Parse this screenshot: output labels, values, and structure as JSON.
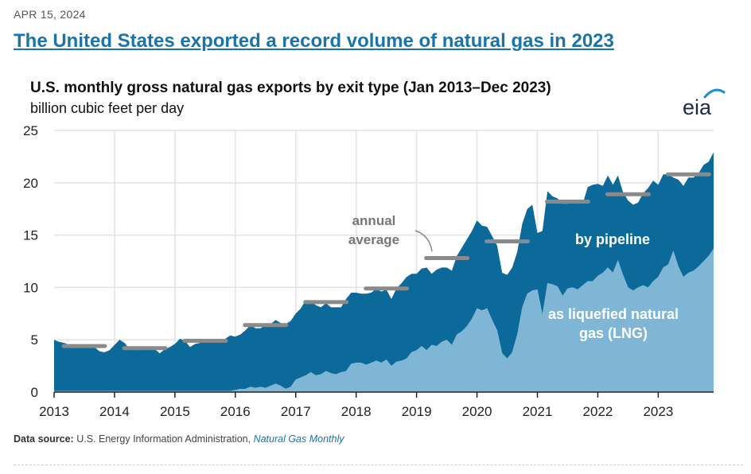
{
  "article": {
    "date": "APR 15, 2024",
    "headline": "The United States exported a record volume of natural gas in 2023"
  },
  "logo": {
    "text": "eia"
  },
  "source": {
    "label": "Data source:",
    "text": "U.S. Energy Information Administration,",
    "link_text": "Natural Gas Monthly"
  },
  "colors": {
    "pipeline": "#0b6a9a",
    "lng": "#7fb6d6",
    "average": "#8a8a8a",
    "grid": "#e3e3e3",
    "axis": "#222222"
  },
  "chart_data": {
    "type": "area",
    "title": "U.S. monthly gross natural gas exports by exit type (Jan 2013–Dec 2023)",
    "ylabel": "billion cubic feet per day",
    "xlabel": "",
    "ylim": [
      0,
      25
    ],
    "y_ticks": [
      0,
      5,
      10,
      15,
      20,
      25
    ],
    "x_ticks": [
      "2013",
      "2014",
      "2015",
      "2016",
      "2017",
      "2018",
      "2019",
      "2020",
      "2021",
      "2022",
      "2023"
    ],
    "start": "2013-01",
    "stacking": "LNG at bottom, pipeline stacked on top; total = top edge",
    "series": [
      {
        "name": "as liquefied natural gas (LNG)",
        "values": [
          0.1,
          0.1,
          0.1,
          0.1,
          0.1,
          0.1,
          0.1,
          0.1,
          0.1,
          0.1,
          0.1,
          0.1,
          0.1,
          0.1,
          0.1,
          0.1,
          0.1,
          0.1,
          0.1,
          0.1,
          0.1,
          0.1,
          0.1,
          0.1,
          0.1,
          0.1,
          0.1,
          0.1,
          0.1,
          0.1,
          0.1,
          0.1,
          0.1,
          0.1,
          0.1,
          0.1,
          0.2,
          0.3,
          0.3,
          0.5,
          0.4,
          0.5,
          0.4,
          0.6,
          0.8,
          0.6,
          0.3,
          0.5,
          1.2,
          1.4,
          1.6,
          1.9,
          1.6,
          1.7,
          2.0,
          1.8,
          1.7,
          1.9,
          2.0,
          2.7,
          2.8,
          2.8,
          2.6,
          2.8,
          3.0,
          2.8,
          3.1,
          2.5,
          2.9,
          3.0,
          3.2,
          3.8,
          4.0,
          4.4,
          4.0,
          4.5,
          4.4,
          4.8,
          5.0,
          4.5,
          5.5,
          5.8,
          6.3,
          7.0,
          8.0,
          7.8,
          8.0,
          6.9,
          5.9,
          3.7,
          3.2,
          3.8,
          5.5,
          8.1,
          9.4,
          9.7,
          9.8,
          7.4,
          10.4,
          10.3,
          10.1,
          9.2,
          9.9,
          10.0,
          9.8,
          10.2,
          10.6,
          10.6,
          11.1,
          11.4,
          11.9,
          11.4,
          12.6,
          11.2,
          10.0,
          9.7,
          10.0,
          10.2,
          10.0,
          10.6,
          11.0,
          11.9,
          12.2,
          13.5,
          12.0,
          11.0,
          11.4,
          11.6,
          12.0,
          12.5,
          13.0,
          13.7
        ]
      },
      {
        "name": "by pipeline",
        "values": [
          4.9,
          4.7,
          4.6,
          4.4,
          4.1,
          4.2,
          4.3,
          4.2,
          4.2,
          3.8,
          3.7,
          3.9,
          4.4,
          4.9,
          4.6,
          4.0,
          4.2,
          3.9,
          4.2,
          4.1,
          4.0,
          3.6,
          4.0,
          4.2,
          4.5,
          5.0,
          4.8,
          4.2,
          4.5,
          4.6,
          4.8,
          4.8,
          4.8,
          4.9,
          5.0,
          5.3,
          5.1,
          5.2,
          5.6,
          5.9,
          5.7,
          5.6,
          6.0,
          5.9,
          6.1,
          6.0,
          6.2,
          6.3,
          6.3,
          6.6,
          7.2,
          6.8,
          6.7,
          6.4,
          6.5,
          6.3,
          6.4,
          6.2,
          6.9,
          6.8,
          6.7,
          6.6,
          6.8,
          6.7,
          6.9,
          6.8,
          6.7,
          6.4,
          7.0,
          7.4,
          7.8,
          7.5,
          7.3,
          7.4,
          7.9,
          6.8,
          7.3,
          7.1,
          6.9,
          7.1,
          7.5,
          8.0,
          8.3,
          8.4,
          8.4,
          8.1,
          7.8,
          8.0,
          8.1,
          7.7,
          8.0,
          8.1,
          7.9,
          8.0,
          8.1,
          8.2,
          5.4,
          8.0,
          8.8,
          8.4,
          8.4,
          8.8,
          8.1,
          8.3,
          8.3,
          7.8,
          9.0,
          9.2,
          8.8,
          8.3,
          8.8,
          8.4,
          8.1,
          7.9,
          8.3,
          8.2,
          8.1,
          8.8,
          9.5,
          9.6,
          8.8,
          8.9,
          8.6,
          7.0,
          8.3,
          8.7,
          9.1,
          8.9,
          8.9,
          9.2,
          9.0,
          9.2
        ]
      }
    ],
    "annual_average_total": [
      {
        "year": "2013",
        "value": 4.4
      },
      {
        "year": "2014",
        "value": 4.2
      },
      {
        "year": "2015",
        "value": 4.9
      },
      {
        "year": "2016",
        "value": 6.4
      },
      {
        "year": "2017",
        "value": 8.6
      },
      {
        "year": "2018",
        "value": 9.9
      },
      {
        "year": "2019",
        "value": 12.8
      },
      {
        "year": "2020",
        "value": 14.4
      },
      {
        "year": "2021",
        "value": 18.2
      },
      {
        "year": "2022",
        "value": 18.9
      },
      {
        "year": "2023",
        "value": 20.8
      }
    ],
    "annotations": {
      "annual_average": [
        "annual",
        "average"
      ],
      "pipeline_label": "by pipeline",
      "lng_label": [
        "as liquefied natural",
        "gas (LNG)"
      ]
    }
  }
}
